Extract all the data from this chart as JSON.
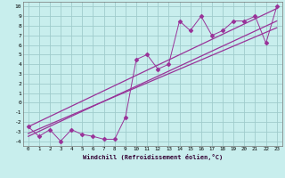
{
  "xlabel": "Windchill (Refroidissement éolien,°C)",
  "background_color": "#c8eeed",
  "grid_color": "#a0cccc",
  "line_color": "#993399",
  "xlim": [
    -0.5,
    23.5
  ],
  "ylim": [
    -4.5,
    10.5
  ],
  "xticks": [
    0,
    1,
    2,
    3,
    4,
    5,
    6,
    7,
    8,
    9,
    10,
    11,
    12,
    13,
    14,
    15,
    16,
    17,
    18,
    19,
    20,
    21,
    22,
    23
  ],
  "yticks": [
    -4,
    -3,
    -2,
    -1,
    0,
    1,
    2,
    3,
    4,
    5,
    6,
    7,
    8,
    9,
    10
  ],
  "scatter_x": [
    0,
    1,
    2,
    3,
    4,
    5,
    6,
    7,
    8,
    9,
    10,
    11,
    12,
    13,
    14,
    15,
    16,
    17,
    18,
    19,
    20,
    21,
    22,
    23
  ],
  "scatter_y": [
    -2.5,
    -3.5,
    -2.8,
    -4.0,
    -2.8,
    -3.3,
    -3.5,
    -3.8,
    -3.8,
    -1.5,
    4.5,
    5.0,
    3.5,
    4.0,
    8.5,
    7.5,
    9.0,
    7.0,
    7.5,
    8.5,
    8.5,
    9.0,
    6.2,
    10.0
  ],
  "line1_x": [
    0,
    23
  ],
  "line1_y": [
    -3.5,
    8.5
  ],
  "line2_x": [
    0,
    23
  ],
  "line2_y": [
    -2.5,
    9.8
  ],
  "line3_x": [
    0,
    23
  ],
  "line3_y": [
    -3.2,
    7.8
  ]
}
